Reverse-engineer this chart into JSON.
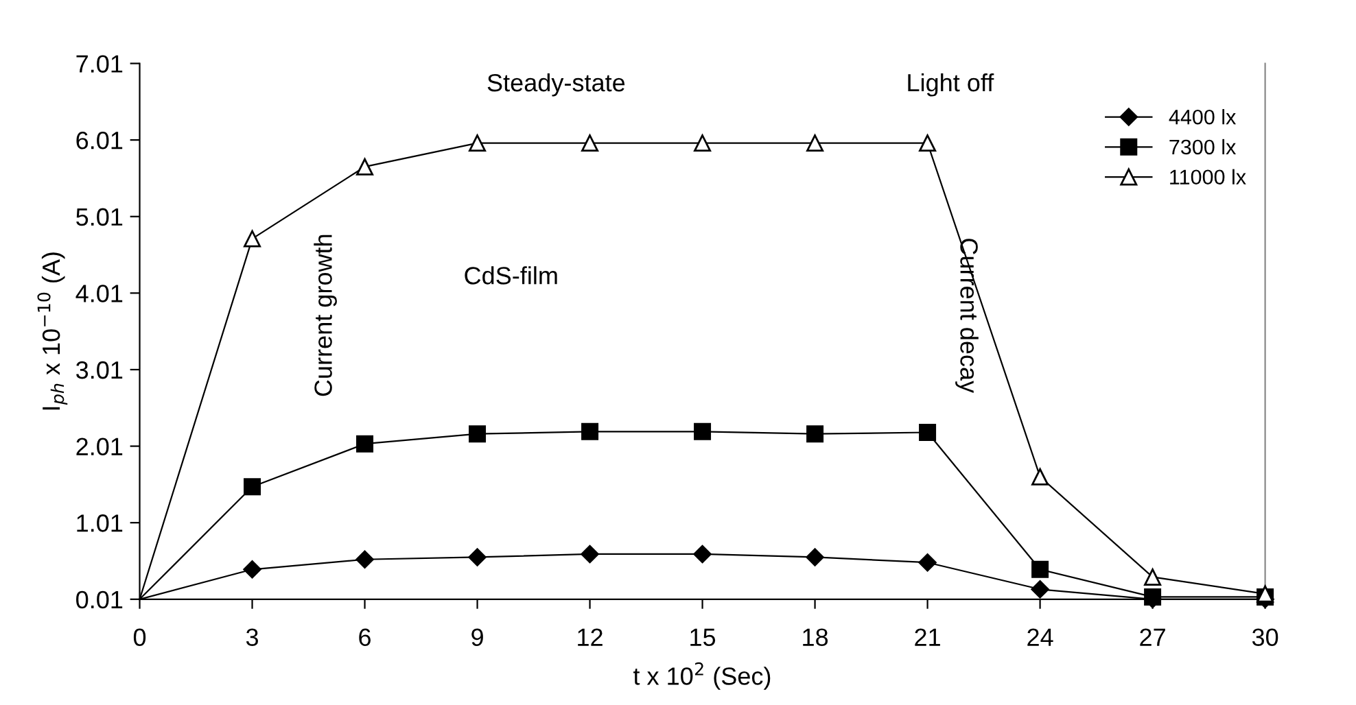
{
  "chart_data": {
    "type": "line",
    "xlabel": "t x 10$^{2}$ (Sec)",
    "ylabel": "I$_{ph}$ x 10$^{−10}$ (A)",
    "x": [
      0,
      3,
      6,
      9,
      12,
      15,
      18,
      21,
      24,
      27,
      30
    ],
    "series": [
      {
        "name": "4400 lx",
        "color": "#000000",
        "marker": "diamond",
        "values": [
          0.01,
          0.4,
          0.53,
          0.56,
          0.6,
          0.6,
          0.56,
          0.49,
          0.14,
          0.01,
          0.01
        ]
      },
      {
        "name": "7300 lx",
        "color": "#000000",
        "marker": "square",
        "values": [
          0.01,
          1.48,
          2.04,
          2.17,
          2.2,
          2.2,
          2.17,
          2.19,
          0.4,
          0.04,
          0.04
        ]
      },
      {
        "name": "11000 lx",
        "color": "#000000",
        "marker": "triangle",
        "values": [
          0.01,
          4.72,
          5.66,
          5.97,
          5.97,
          5.97,
          5.97,
          5.97,
          1.61,
          0.3,
          0.08
        ]
      }
    ],
    "xlim": [
      0,
      30
    ],
    "xticks": [
      0,
      3,
      6,
      9,
      12,
      15,
      18,
      21,
      24,
      27,
      30
    ],
    "ylim": [
      0.01,
      7.01
    ],
    "yticks": [
      0.01,
      1.01,
      2.01,
      3.01,
      4.01,
      5.01,
      6.01,
      7.01
    ],
    "grid": false,
    "legend": "top right",
    "line_style": "solid",
    "annotations": [
      "Steady-state",
      "Light off",
      "CdS-film",
      "Current growth",
      "Current decay"
    ]
  }
}
